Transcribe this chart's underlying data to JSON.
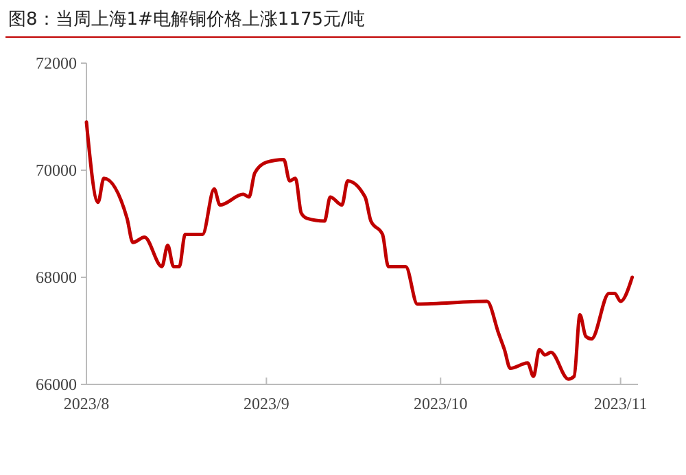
{
  "chart_data": {
    "type": "line",
    "title": "图8：当周上海1#电解铜价格上涨1175元/吨",
    "x": [
      "2023-08-01",
      "2023-08-03",
      "2023-08-04",
      "2023-08-08",
      "2023-08-09",
      "2023-08-11",
      "2023-08-14",
      "2023-08-15",
      "2023-08-16",
      "2023-08-17",
      "2023-08-18",
      "2023-08-21",
      "2023-08-23",
      "2023-08-24",
      "2023-08-28",
      "2023-08-29",
      "2023-08-30",
      "2023-09-01",
      "2023-09-04",
      "2023-09-05",
      "2023-09-06",
      "2023-09-07",
      "2023-09-08",
      "2023-09-11",
      "2023-09-12",
      "2023-09-14",
      "2023-09-15",
      "2023-09-18",
      "2023-09-19",
      "2023-09-21",
      "2023-09-22",
      "2023-09-25",
      "2023-09-27",
      "2023-10-09",
      "2023-10-11",
      "2023-10-12",
      "2023-10-13",
      "2023-10-16",
      "2023-10-17",
      "2023-10-18",
      "2023-10-19",
      "2023-10-20",
      "2023-10-23",
      "2023-10-24",
      "2023-10-25",
      "2023-10-26",
      "2023-10-27",
      "2023-10-30",
      "2023-10-31",
      "2023-11-01",
      "2023-11-03"
    ],
    "series": [
      {
        "color": "#c00000",
        "values": [
          70900,
          69400,
          69850,
          69100,
          68650,
          68750,
          68200,
          68600,
          68200,
          68200,
          68800,
          68800,
          69650,
          69350,
          69550,
          69500,
          69950,
          70150,
          70200,
          69800,
          69850,
          69200,
          69100,
          69050,
          69500,
          69350,
          69800,
          69500,
          69050,
          68800,
          68200,
          68200,
          67500,
          67550,
          66950,
          66650,
          66300,
          66400,
          66150,
          66650,
          66550,
          66600,
          66100,
          66150,
          67300,
          66900,
          66850,
          67700,
          67700,
          67550,
          68000
        ]
      }
    ],
    "xlim": [
      "2023-08-01",
      "2023-11-04"
    ],
    "xticks": [
      {
        "value": "2023-08-01",
        "label": "2023/8"
      },
      {
        "value": "2023-09-01",
        "label": "2023/9"
      },
      {
        "value": "2023-10-01",
        "label": "2023/10"
      },
      {
        "value": "2023-11-01",
        "label": "2023/11"
      }
    ],
    "ylim": [
      66000,
      72000
    ],
    "yticks": [
      66000,
      68000,
      70000,
      72000
    ],
    "grid": false,
    "marker": "none",
    "line_style": "solid"
  }
}
